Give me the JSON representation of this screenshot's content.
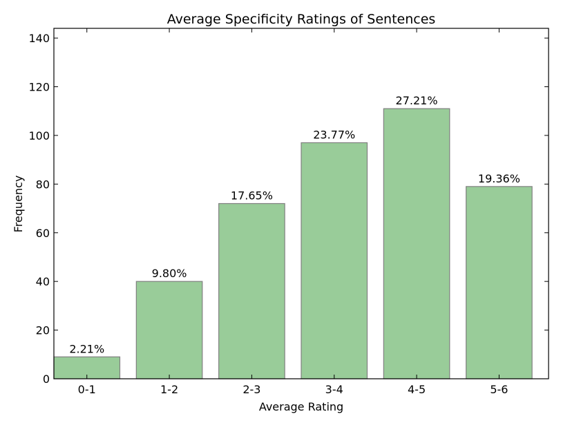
{
  "chart_data": {
    "type": "bar",
    "title": "Average Specificity Ratings of Sentences",
    "xlabel": "Average Rating",
    "ylabel": "Frequency",
    "categories": [
      "0-1",
      "1-2",
      "2-3",
      "3-4",
      "4-5",
      "5-6"
    ],
    "values": [
      9,
      40,
      72,
      97,
      111,
      79
    ],
    "data_labels": [
      "2.21%",
      "9.80%",
      "17.65%",
      "23.77%",
      "27.21%",
      "19.36%"
    ],
    "ylim": [
      0,
      144
    ],
    "yticks": [
      0,
      20,
      40,
      60,
      80,
      100,
      120,
      140
    ],
    "grid": false,
    "bar_color": "#99cc99",
    "bar_edge_color": "#7f7f7f"
  }
}
